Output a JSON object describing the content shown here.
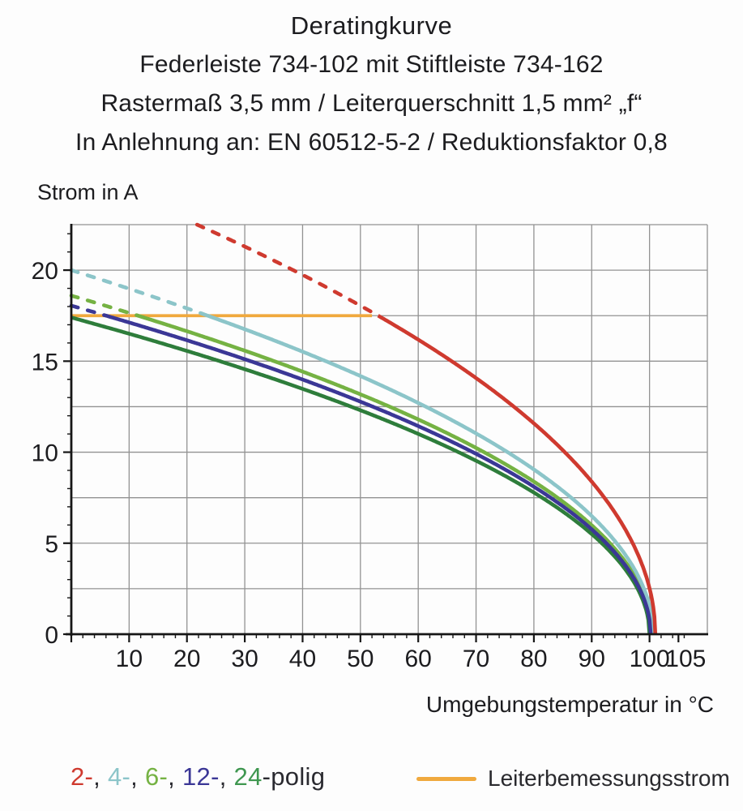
{
  "header": {
    "title": "Deratingkurve",
    "subtitle1": "Federleiste 734-102 mit Stiftleiste 734-162",
    "subtitle2": "Rastermaß 3,5 mm / Leiterquerschnitt 1,5 mm² „f“",
    "subtitle3": "In Anlehnung an: EN 60512-5-2 / Reduktionsfaktor 0,8"
  },
  "chart_data": {
    "type": "line",
    "title": "Deratingkurve",
    "ylabel": "Strom in A",
    "xlabel": "Umgebungstemperatur in °C",
    "xlim": [
      0,
      110
    ],
    "ylim": [
      0,
      22.5
    ],
    "x_major_ticks": [
      10,
      20,
      30,
      40,
      50,
      60,
      70,
      80,
      90,
      100,
      105
    ],
    "x_minor_tick_step": 2,
    "y_major_ticks": [
      0,
      5,
      10,
      15,
      20
    ],
    "y_minor_tick_step": 1,
    "grid": {
      "x_step": 10,
      "y_step": 2.5,
      "color": "#929292",
      "on": true
    },
    "axis_color": "#161616",
    "rated_current": {
      "label": "Leiterbemessungsstrom",
      "value_a": 17.5,
      "x_start_c": 0,
      "x_end_c": 52,
      "color": "#f0a93e"
    },
    "dash_rule": "curve segments above the rated current 17.5 A are drawn dashed",
    "series": [
      {
        "name": "2-polig",
        "color": "#cf3a2f",
        "i0_a": 25.4,
        "t_zero_c": 101.0,
        "points": [
          [
            21,
            22.5
          ],
          [
            30,
            21.2
          ],
          [
            40,
            19.7
          ],
          [
            52,
            17.6
          ],
          [
            60,
            16.1
          ],
          [
            70,
            14.0
          ],
          [
            80,
            11.5
          ],
          [
            90,
            8.4
          ],
          [
            95,
            6.2
          ],
          [
            100,
            2.5
          ],
          [
            101,
            0
          ]
        ]
      },
      {
        "name": "4-polig",
        "color": "#8cc5c9",
        "i0_a": 20.0,
        "t_zero_c": 100.6,
        "points": [
          [
            0,
            20.0
          ],
          [
            10,
            19.0
          ],
          [
            20,
            17.9
          ],
          [
            23.6,
            17.5
          ],
          [
            30,
            16.8
          ],
          [
            40,
            15.5
          ],
          [
            50,
            14.2
          ],
          [
            60,
            12.7
          ],
          [
            70,
            11.0
          ],
          [
            80,
            9.1
          ],
          [
            90,
            6.5
          ],
          [
            95,
            4.7
          ],
          [
            100,
            1.5
          ],
          [
            100.6,
            0
          ]
        ]
      },
      {
        "name": "6-polig",
        "color": "#75b243",
        "i0_a": 18.6,
        "t_zero_c": 100.4,
        "points": [
          [
            0,
            18.6
          ],
          [
            11.5,
            17.5
          ],
          [
            20,
            16.6
          ],
          [
            30,
            15.6
          ],
          [
            40,
            14.4
          ],
          [
            50,
            13.2
          ],
          [
            60,
            11.9
          ],
          [
            70,
            10.2
          ],
          [
            80,
            8.4
          ],
          [
            90,
            6.0
          ],
          [
            95,
            4.3
          ],
          [
            100,
            1.2
          ],
          [
            100.4,
            0
          ]
        ]
      },
      {
        "name": "12-polig",
        "color": "#3b3796",
        "i0_a": 18.05,
        "t_zero_c": 100.2,
        "points": [
          [
            0,
            18.1
          ],
          [
            6,
            17.5
          ],
          [
            20,
            16.1
          ],
          [
            30,
            15.2
          ],
          [
            40,
            14.0
          ],
          [
            50,
            12.8
          ],
          [
            60,
            11.5
          ],
          [
            70,
            9.9
          ],
          [
            80,
            8.1
          ],
          [
            90,
            5.8
          ],
          [
            95,
            4.1
          ],
          [
            100,
            0.8
          ],
          [
            100.2,
            0
          ]
        ]
      },
      {
        "name": "24-polig",
        "color": "#2e7d3b",
        "i0_a": 17.4,
        "t_zero_c": 100.0,
        "points": [
          [
            0,
            17.4
          ],
          [
            10,
            16.5
          ],
          [
            20,
            15.6
          ],
          [
            30,
            14.6
          ],
          [
            40,
            13.5
          ],
          [
            50,
            12.3
          ],
          [
            60,
            11.0
          ],
          [
            70,
            9.6
          ],
          [
            80,
            7.8
          ],
          [
            90,
            5.5
          ],
          [
            95,
            3.9
          ],
          [
            100,
            0
          ]
        ]
      }
    ]
  },
  "legend": {
    "poles_parts": [
      {
        "text": "2-",
        "color": "#cf3a2f"
      },
      {
        "text": ", ",
        "color": "#2a2a30"
      },
      {
        "text": "4-",
        "color": "#8cc5c9"
      },
      {
        "text": ", ",
        "color": "#2a2a30"
      },
      {
        "text": "6-",
        "color": "#75b243"
      },
      {
        "text": ", ",
        "color": "#2a2a30"
      },
      {
        "text": "12-",
        "color": "#3b3796"
      },
      {
        "text": ", ",
        "color": "#2a2a30"
      },
      {
        "text": "24",
        "color": "#3f9750"
      },
      {
        "text": "-polig",
        "color": "#2a2a30"
      }
    ]
  }
}
